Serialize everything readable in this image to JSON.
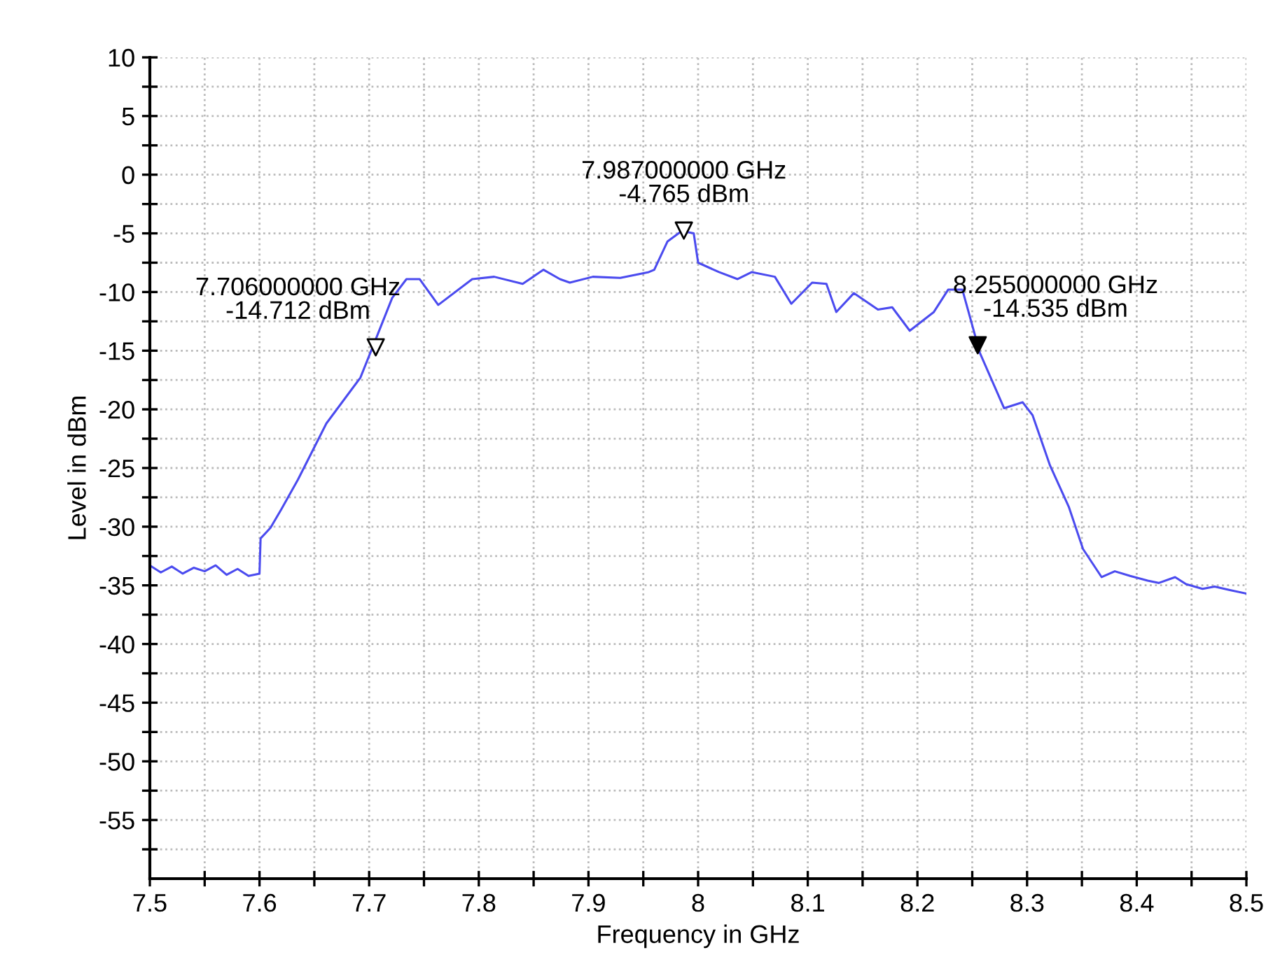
{
  "chart_data": {
    "type": "line",
    "xlabel": "Frequency in GHz",
    "ylabel": "Level in dBm",
    "xlim": [
      7.5,
      8.5
    ],
    "ylim": [
      -60,
      10
    ],
    "xticks": [
      7.5,
      {
        "value": 7.55,
        "label": null
      },
      7.6,
      {
        "value": 7.65,
        "label": null
      },
      7.7,
      {
        "value": 7.75,
        "label": null
      },
      7.8,
      {
        "value": 7.85,
        "label": null
      },
      7.9,
      {
        "value": 7.95,
        "label": null
      },
      8,
      {
        "value": 8.05,
        "label": null
      },
      8.1,
      {
        "value": 8.15,
        "label": null
      },
      8.2,
      {
        "value": 8.25,
        "label": null
      },
      8.3,
      {
        "value": 8.35,
        "label": null
      },
      8.4,
      {
        "value": 8.45,
        "label": null
      },
      8.5
    ],
    "yticks": [
      {
        "value": -57.5,
        "label": null
      },
      -55,
      {
        "value": -52.5,
        "label": null
      },
      -50,
      {
        "value": -47.5,
        "label": null
      },
      -45,
      {
        "value": -42.5,
        "label": null
      },
      -40,
      {
        "value": -37.5,
        "label": null
      },
      -35,
      {
        "value": -32.5,
        "label": null
      },
      -30,
      {
        "value": -27.5,
        "label": null
      },
      -25,
      {
        "value": -22.5,
        "label": null
      },
      -20,
      {
        "value": -17.5,
        "label": null
      },
      -15,
      {
        "value": -12.5,
        "label": null
      },
      -10,
      {
        "value": -7.5,
        "label": null
      },
      -5,
      {
        "value": -2.5,
        "label": null
      },
      0,
      {
        "value": 2.5,
        "label": null
      },
      5,
      {
        "value": 7.5,
        "label": null
      },
      10
    ],
    "grid": true,
    "legend": false,
    "series": [
      {
        "color": "#4b4bef",
        "line_style": "solid",
        "marker": "none",
        "x": [
          7.5,
          7.51,
          7.52,
          7.53,
          7.54,
          7.55,
          7.56,
          7.57,
          7.58,
          7.59,
          7.6,
          7.601,
          7.61,
          7.62,
          7.635,
          7.661,
          7.692,
          7.704,
          7.721,
          7.734,
          7.746,
          7.763,
          7.794,
          7.814,
          7.84,
          7.859,
          7.874,
          7.883,
          7.904,
          7.929,
          7.955,
          7.96,
          7.972,
          7.985,
          7.996,
          8.0,
          8.019,
          8.036,
          8.049,
          8.07,
          8.085,
          8.104,
          8.117,
          8.126,
          8.142,
          8.164,
          8.177,
          8.193,
          8.215,
          8.228,
          8.241,
          8.249,
          8.257,
          8.279,
          8.296,
          8.305,
          8.321,
          8.338,
          8.351,
          8.368,
          8.38,
          8.394,
          8.41,
          8.42,
          8.435,
          8.445,
          8.46,
          8.471,
          8.485,
          8.5
        ],
        "values": [
          -33.3,
          -33.9,
          -33.4,
          -34.0,
          -33.5,
          -33.8,
          -33.3,
          -34.1,
          -33.6,
          -34.2,
          -34.0,
          -31.0,
          -30.1,
          -28.5,
          -26.0,
          -21.2,
          -17.3,
          -14.5,
          -10.5,
          -8.9,
          -8.9,
          -11.1,
          -8.9,
          -8.7,
          -9.3,
          -8.1,
          -8.9,
          -9.2,
          -8.7,
          -8.8,
          -8.3,
          -8.1,
          -5.7,
          -4.8,
          -5.0,
          -7.5,
          -8.3,
          -8.9,
          -8.3,
          -8.7,
          -11.0,
          -9.2,
          -9.3,
          -11.7,
          -10.1,
          -11.5,
          -11.3,
          -13.3,
          -11.7,
          -9.8,
          -9.8,
          -12.5,
          -15.2,
          -19.9,
          -19.4,
          -20.5,
          -24.8,
          -28.3,
          -31.9,
          -34.3,
          -33.8,
          -34.2,
          -34.6,
          -34.8,
          -34.3,
          -34.9,
          -35.3,
          -35.1,
          -35.4,
          -35.7
        ]
      },
      {
        "type": "scatter",
        "marker": "triangle",
        "color": "#000000",
        "x": [
          7.706,
          7.987,
          8.255
        ],
        "values": [
          -14.712,
          -4.765,
          -14.535
        ],
        "colors": [
          "#ffffff",
          "#ffffff",
          "#000000"
        ]
      }
    ],
    "annotations": [
      {
        "text": "7.706000000 GHz\n-14.712 dBm",
        "x": 7.706,
        "y": -14.712
      },
      {
        "text": "7.987000000 GHz\n-4.765 dBm",
        "x": 7.987,
        "y": -4.765
      },
      {
        "text": "8.255000000 GHz\n-14.535 dBm",
        "x": 8.255,
        "y": -14.535
      }
    ]
  }
}
